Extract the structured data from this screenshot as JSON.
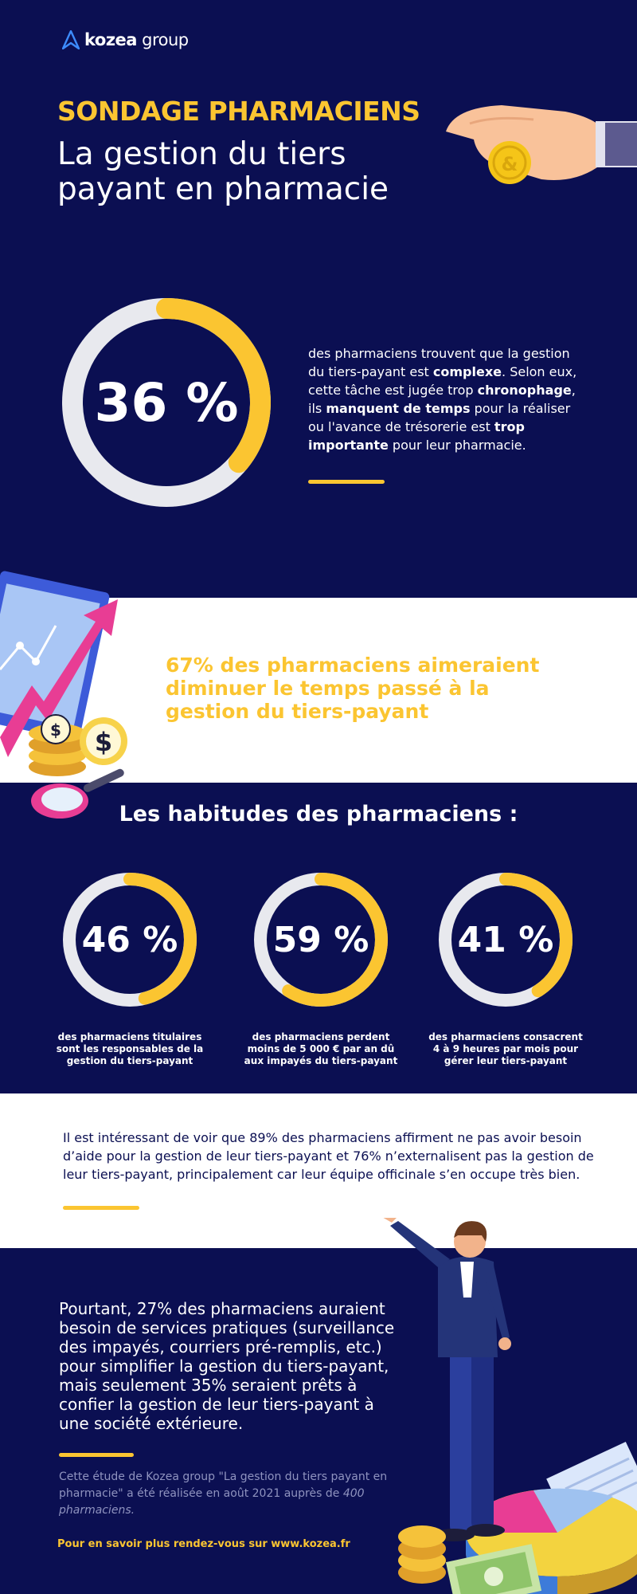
{
  "brand": {
    "name_bold": "kozea",
    "name_light": " group",
    "accent": "#fbc531",
    "navy": "#0b0f52",
    "ring_track": "#e8e9ee"
  },
  "header": {
    "kicker": "SONDAGE PHARMACIENS",
    "title": "La gestion du tiers payant en pharmacie"
  },
  "hero_stat": {
    "value": "36 %",
    "fraction": 0.36,
    "text_1": "des pharmaciens trouvent que la gestion du tiers-payant est ",
    "bold_1": "complexe",
    "text_2": ". Selon eux, cette tâche est jugée trop ",
    "bold_2": "chronophage",
    "text_3": ", ils ",
    "bold_3": "manquent de temps",
    "text_4": " pour la réaliser ou l'avance de trésorerie est ",
    "bold_4": "trop importante",
    "text_5": " pour leur pharmacie."
  },
  "band": {
    "text": "67% des pharmaciens aimeraient diminuer le temps passé à la gestion du tiers-payant"
  },
  "habits": {
    "title": "Les habitudes des pharmaciens :",
    "items": [
      {
        "value": "46 %",
        "fraction": 0.46,
        "caption": "des pharmaciens titulaires sont les responsables de la gestion du tiers-payant"
      },
      {
        "value": "59 %",
        "fraction": 0.59,
        "caption": "des pharmaciens perdent moins de 5 000 € par an dû aux impayés du tiers-payant"
      },
      {
        "value": "41 %",
        "fraction": 0.41,
        "caption": "des pharmaciens consacrent 4 à 9 heures par mois pour gérer leur tiers-payant"
      }
    ]
  },
  "note": {
    "text": "Il est intéressant de voir que 89% des pharmaciens affirment ne pas avoir besoin d’aide pour la gestion de leur tiers-payant et 76% n’externalisent pas la gestion de leur tiers-payant, principalement car leur équipe officinale s’en occupe très bien."
  },
  "footer": {
    "main": "Pourtant, 27% des pharmaciens auraient besoin de services pratiques (surveillance des impayés, courriers pré-remplis, etc.) pour simplifier la gestion du tiers-payant, mais seulement 35% seraient prêts à confier la gestion de leur tiers-payant à une société extérieure.",
    "study_prefix": "Cette étude de Kozea group \"La gestion du tiers payant en pharmacie\" a été réalisée en août 2021 auprès de ",
    "study_italic": "400 pharmaciens.",
    "cta": "Pour en savoir plus rendez-vous sur www.kozea.fr"
  }
}
